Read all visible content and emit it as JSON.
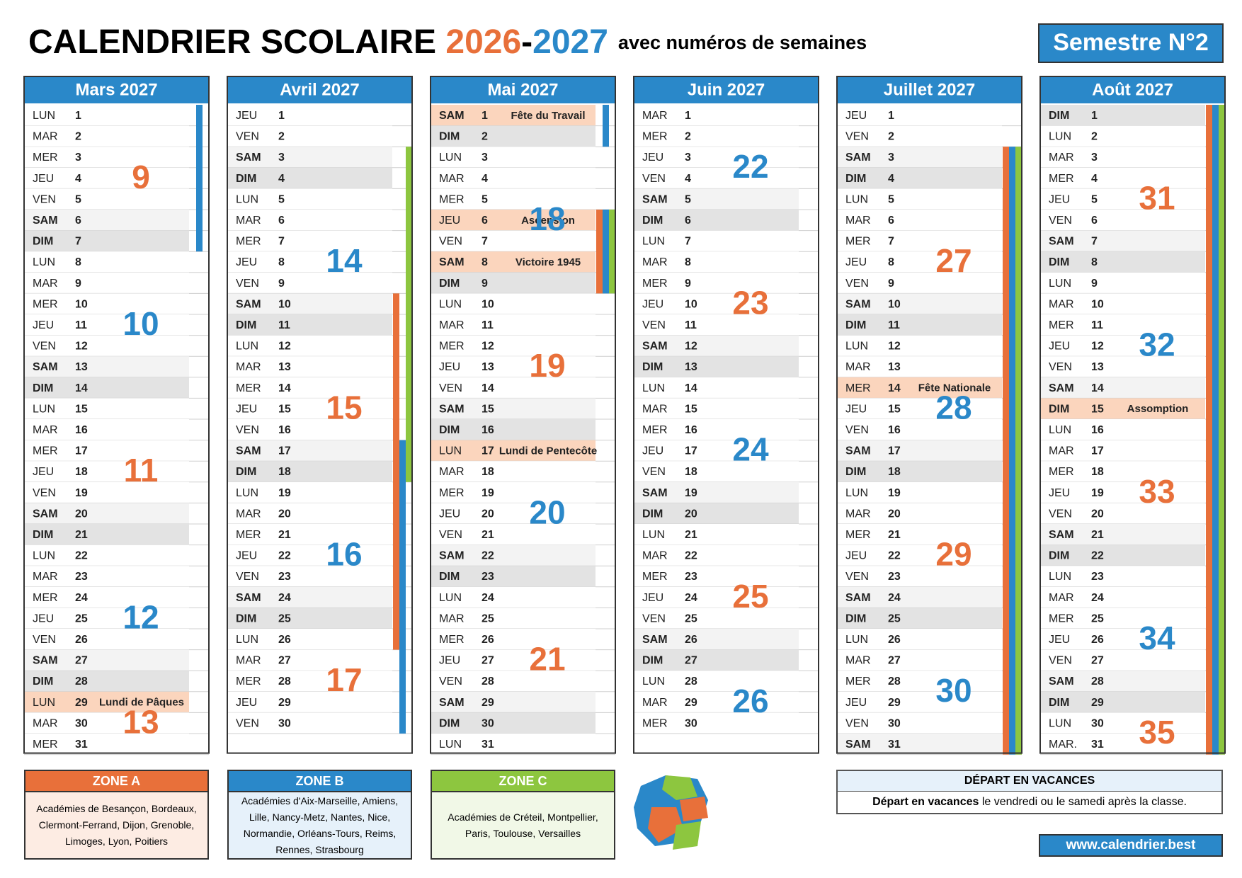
{
  "header": {
    "title_main": "CALENDRIER SCOLAIRE",
    "year_start": "2026",
    "dash": "-",
    "year_end": "2027",
    "subtitle": "avec numéros de semaines",
    "semester": "Semestre N°2"
  },
  "week_colors": {
    "odd": "#e8703a",
    "even": "#2a88c9"
  },
  "months": [
    {
      "name": "Mars 2027",
      "weeks": [
        9,
        10,
        11,
        12,
        13
      ],
      "days": [
        [
          "LUN",
          1
        ],
        [
          "MAR",
          2
        ],
        [
          "MER",
          3
        ],
        [
          "JEU",
          4
        ],
        [
          "VEN",
          5
        ],
        [
          "SAM",
          6
        ],
        [
          "DIM",
          7
        ],
        [
          "LUN",
          8
        ],
        [
          "MAR",
          9
        ],
        [
          "MER",
          10
        ],
        [
          "JEU",
          11
        ],
        [
          "VEN",
          12
        ],
        [
          "SAM",
          13
        ],
        [
          "DIM",
          14
        ],
        [
          "LUN",
          15
        ],
        [
          "MAR",
          16
        ],
        [
          "MER",
          17
        ],
        [
          "JEU",
          18
        ],
        [
          "VEN",
          19
        ],
        [
          "SAM",
          20
        ],
        [
          "DIM",
          21
        ],
        [
          "LUN",
          22
        ],
        [
          "MAR",
          23
        ],
        [
          "MER",
          24
        ],
        [
          "JEU",
          25
        ],
        [
          "VEN",
          26
        ],
        [
          "SAM",
          27
        ],
        [
          "DIM",
          28
        ],
        [
          "LUN",
          29,
          "Lundi de Pâques"
        ],
        [
          "MAR",
          30
        ],
        [
          "MER",
          31
        ]
      ]
    },
    {
      "name": "Avril 2027",
      "weeks": [
        null,
        14,
        15,
        16,
        17
      ],
      "days": [
        [
          "JEU",
          1
        ],
        [
          "VEN",
          2
        ],
        [
          "SAM",
          3
        ],
        [
          "DIM",
          4
        ],
        [
          "LUN",
          5
        ],
        [
          "MAR",
          6
        ],
        [
          "MER",
          7
        ],
        [
          "JEU",
          8
        ],
        [
          "VEN",
          9
        ],
        [
          "SAM",
          10
        ],
        [
          "DIM",
          11
        ],
        [
          "LUN",
          12
        ],
        [
          "MAR",
          13
        ],
        [
          "MER",
          14
        ],
        [
          "JEU",
          15
        ],
        [
          "VEN",
          16
        ],
        [
          "SAM",
          17
        ],
        [
          "DIM",
          18
        ],
        [
          "LUN",
          19
        ],
        [
          "MAR",
          20
        ],
        [
          "MER",
          21
        ],
        [
          "JEU",
          22
        ],
        [
          "VEN",
          23
        ],
        [
          "SAM",
          24
        ],
        [
          "DIM",
          25
        ],
        [
          "LUN",
          26
        ],
        [
          "MAR",
          27
        ],
        [
          "MER",
          28
        ],
        [
          "JEU",
          29
        ],
        [
          "VEN",
          30
        ]
      ]
    },
    {
      "name": "Mai 2027",
      "weeks": [
        null,
        18,
        19,
        20,
        21,
        null
      ],
      "days": [
        [
          "SAM",
          1,
          "Fête du Travail"
        ],
        [
          "DIM",
          2
        ],
        [
          "LUN",
          3
        ],
        [
          "MAR",
          4
        ],
        [
          "MER",
          5
        ],
        [
          "JEU",
          6,
          "Ascension"
        ],
        [
          "VEN",
          7
        ],
        [
          "SAM",
          8,
          "Victoire 1945"
        ],
        [
          "DIM",
          9
        ],
        [
          "LUN",
          10
        ],
        [
          "MAR",
          11
        ],
        [
          "MER",
          12
        ],
        [
          "JEU",
          13
        ],
        [
          "VEN",
          14
        ],
        [
          "SAM",
          15
        ],
        [
          "DIM",
          16
        ],
        [
          "LUN",
          17,
          "Lundi de Pentecôte"
        ],
        [
          "MAR",
          18
        ],
        [
          "MER",
          19
        ],
        [
          "JEU",
          20
        ],
        [
          "VEN",
          21
        ],
        [
          "SAM",
          22
        ],
        [
          "DIM",
          23
        ],
        [
          "LUN",
          24
        ],
        [
          "MAR",
          25
        ],
        [
          "MER",
          26
        ],
        [
          "JEU",
          27
        ],
        [
          "VEN",
          28
        ],
        [
          "SAM",
          29
        ],
        [
          "DIM",
          30
        ],
        [
          "LUN",
          31
        ]
      ]
    },
    {
      "name": "Juin 2027",
      "weeks": [
        22,
        23,
        24,
        25,
        26
      ],
      "days": [
        [
          "MAR",
          1
        ],
        [
          "MER",
          2
        ],
        [
          "JEU",
          3
        ],
        [
          "VEN",
          4
        ],
        [
          "SAM",
          5
        ],
        [
          "DIM",
          6
        ],
        [
          "LUN",
          7
        ],
        [
          "MAR",
          8
        ],
        [
          "MER",
          9
        ],
        [
          "JEU",
          10
        ],
        [
          "VEN",
          11
        ],
        [
          "SAM",
          12
        ],
        [
          "DIM",
          13
        ],
        [
          "LUN",
          14
        ],
        [
          "MAR",
          15
        ],
        [
          "MER",
          16
        ],
        [
          "JEU",
          17
        ],
        [
          "VEN",
          18
        ],
        [
          "SAM",
          19
        ],
        [
          "DIM",
          20
        ],
        [
          "LUN",
          21
        ],
        [
          "MAR",
          22
        ],
        [
          "MER",
          23
        ],
        [
          "JEU",
          24
        ],
        [
          "VEN",
          25
        ],
        [
          "SAM",
          26
        ],
        [
          "DIM",
          27
        ],
        [
          "LUN",
          28
        ],
        [
          "MAR",
          29
        ],
        [
          "MER",
          30
        ]
      ]
    },
    {
      "name": "Juillet 2027",
      "weeks": [
        null,
        27,
        28,
        29,
        30
      ],
      "days": [
        [
          "JEU",
          1
        ],
        [
          "VEN",
          2
        ],
        [
          "SAM",
          3
        ],
        [
          "DIM",
          4
        ],
        [
          "LUN",
          5
        ],
        [
          "MAR",
          6
        ],
        [
          "MER",
          7
        ],
        [
          "JEU",
          8
        ],
        [
          "VEN",
          9
        ],
        [
          "SAM",
          10
        ],
        [
          "DIM",
          11
        ],
        [
          "LUN",
          12
        ],
        [
          "MAR",
          13
        ],
        [
          "MER",
          14,
          "Fête Nationale"
        ],
        [
          "JEU",
          15
        ],
        [
          "VEN",
          16
        ],
        [
          "SAM",
          17
        ],
        [
          "DIM",
          18
        ],
        [
          "LUN",
          19
        ],
        [
          "MAR",
          20
        ],
        [
          "MER",
          21
        ],
        [
          "JEU",
          22
        ],
        [
          "VEN",
          23
        ],
        [
          "SAM",
          24
        ],
        [
          "DIM",
          25
        ],
        [
          "LUN",
          26
        ],
        [
          "MAR",
          27
        ],
        [
          "MER",
          28
        ],
        [
          "JEU",
          29
        ],
        [
          "VEN",
          30
        ],
        [
          "SAM",
          31
        ]
      ]
    },
    {
      "name": "Août 2027",
      "weeks": [
        null,
        31,
        32,
        33,
        34,
        35
      ],
      "days": [
        [
          "DIM",
          1
        ],
        [
          "LUN",
          2
        ],
        [
          "MAR",
          3
        ],
        [
          "MER",
          4
        ],
        [
          "JEU",
          5
        ],
        [
          "VEN",
          6
        ],
        [
          "SAM",
          7
        ],
        [
          "DIM",
          8
        ],
        [
          "LUN",
          9
        ],
        [
          "MAR",
          10
        ],
        [
          "MER",
          11
        ],
        [
          "JEU",
          12
        ],
        [
          "VEN",
          13
        ],
        [
          "SAM",
          14
        ],
        [
          "DIM",
          15,
          "Assomption"
        ],
        [
          "LUN",
          16
        ],
        [
          "MAR",
          17
        ],
        [
          "MER",
          18
        ],
        [
          "JEU",
          19
        ],
        [
          "VEN",
          20
        ],
        [
          "SAM",
          21
        ],
        [
          "DIM",
          22
        ],
        [
          "LUN",
          23
        ],
        [
          "MAR",
          24
        ],
        [
          "MER",
          25
        ],
        [
          "JEU",
          26
        ],
        [
          "VEN",
          27
        ],
        [
          "SAM",
          28
        ],
        [
          "DIM",
          29
        ],
        [
          "LUN",
          30
        ],
        [
          "MAR.",
          31
        ]
      ]
    }
  ],
  "zones": [
    {
      "title": "ZONE A",
      "color": "#e8703a",
      "text": "Académies de Besançon, Bordeaux, Clermont-Ferrand, Dijon, Grenoble, Limoges, Lyon, Poitiers"
    },
    {
      "title": "ZONE B",
      "color": "#2a88c9",
      "text": "Académies d'Aix-Marseille, Amiens, Lille, Nancy-Metz, Nantes, Nice, Normandie, Orléans-Tours, Reims, Rennes, Strasbourg"
    },
    {
      "title": "ZONE C",
      "color": "#8dc63f",
      "text": "Académies de Créteil, Montpellier, Paris, Toulouse, Versailles"
    }
  ],
  "departure": {
    "title": "DÉPART EN VACANCES",
    "bold": "Départ en vacances",
    "text": "le vendredi ou le samedi après la classe."
  },
  "website": "www.calendrier.best"
}
